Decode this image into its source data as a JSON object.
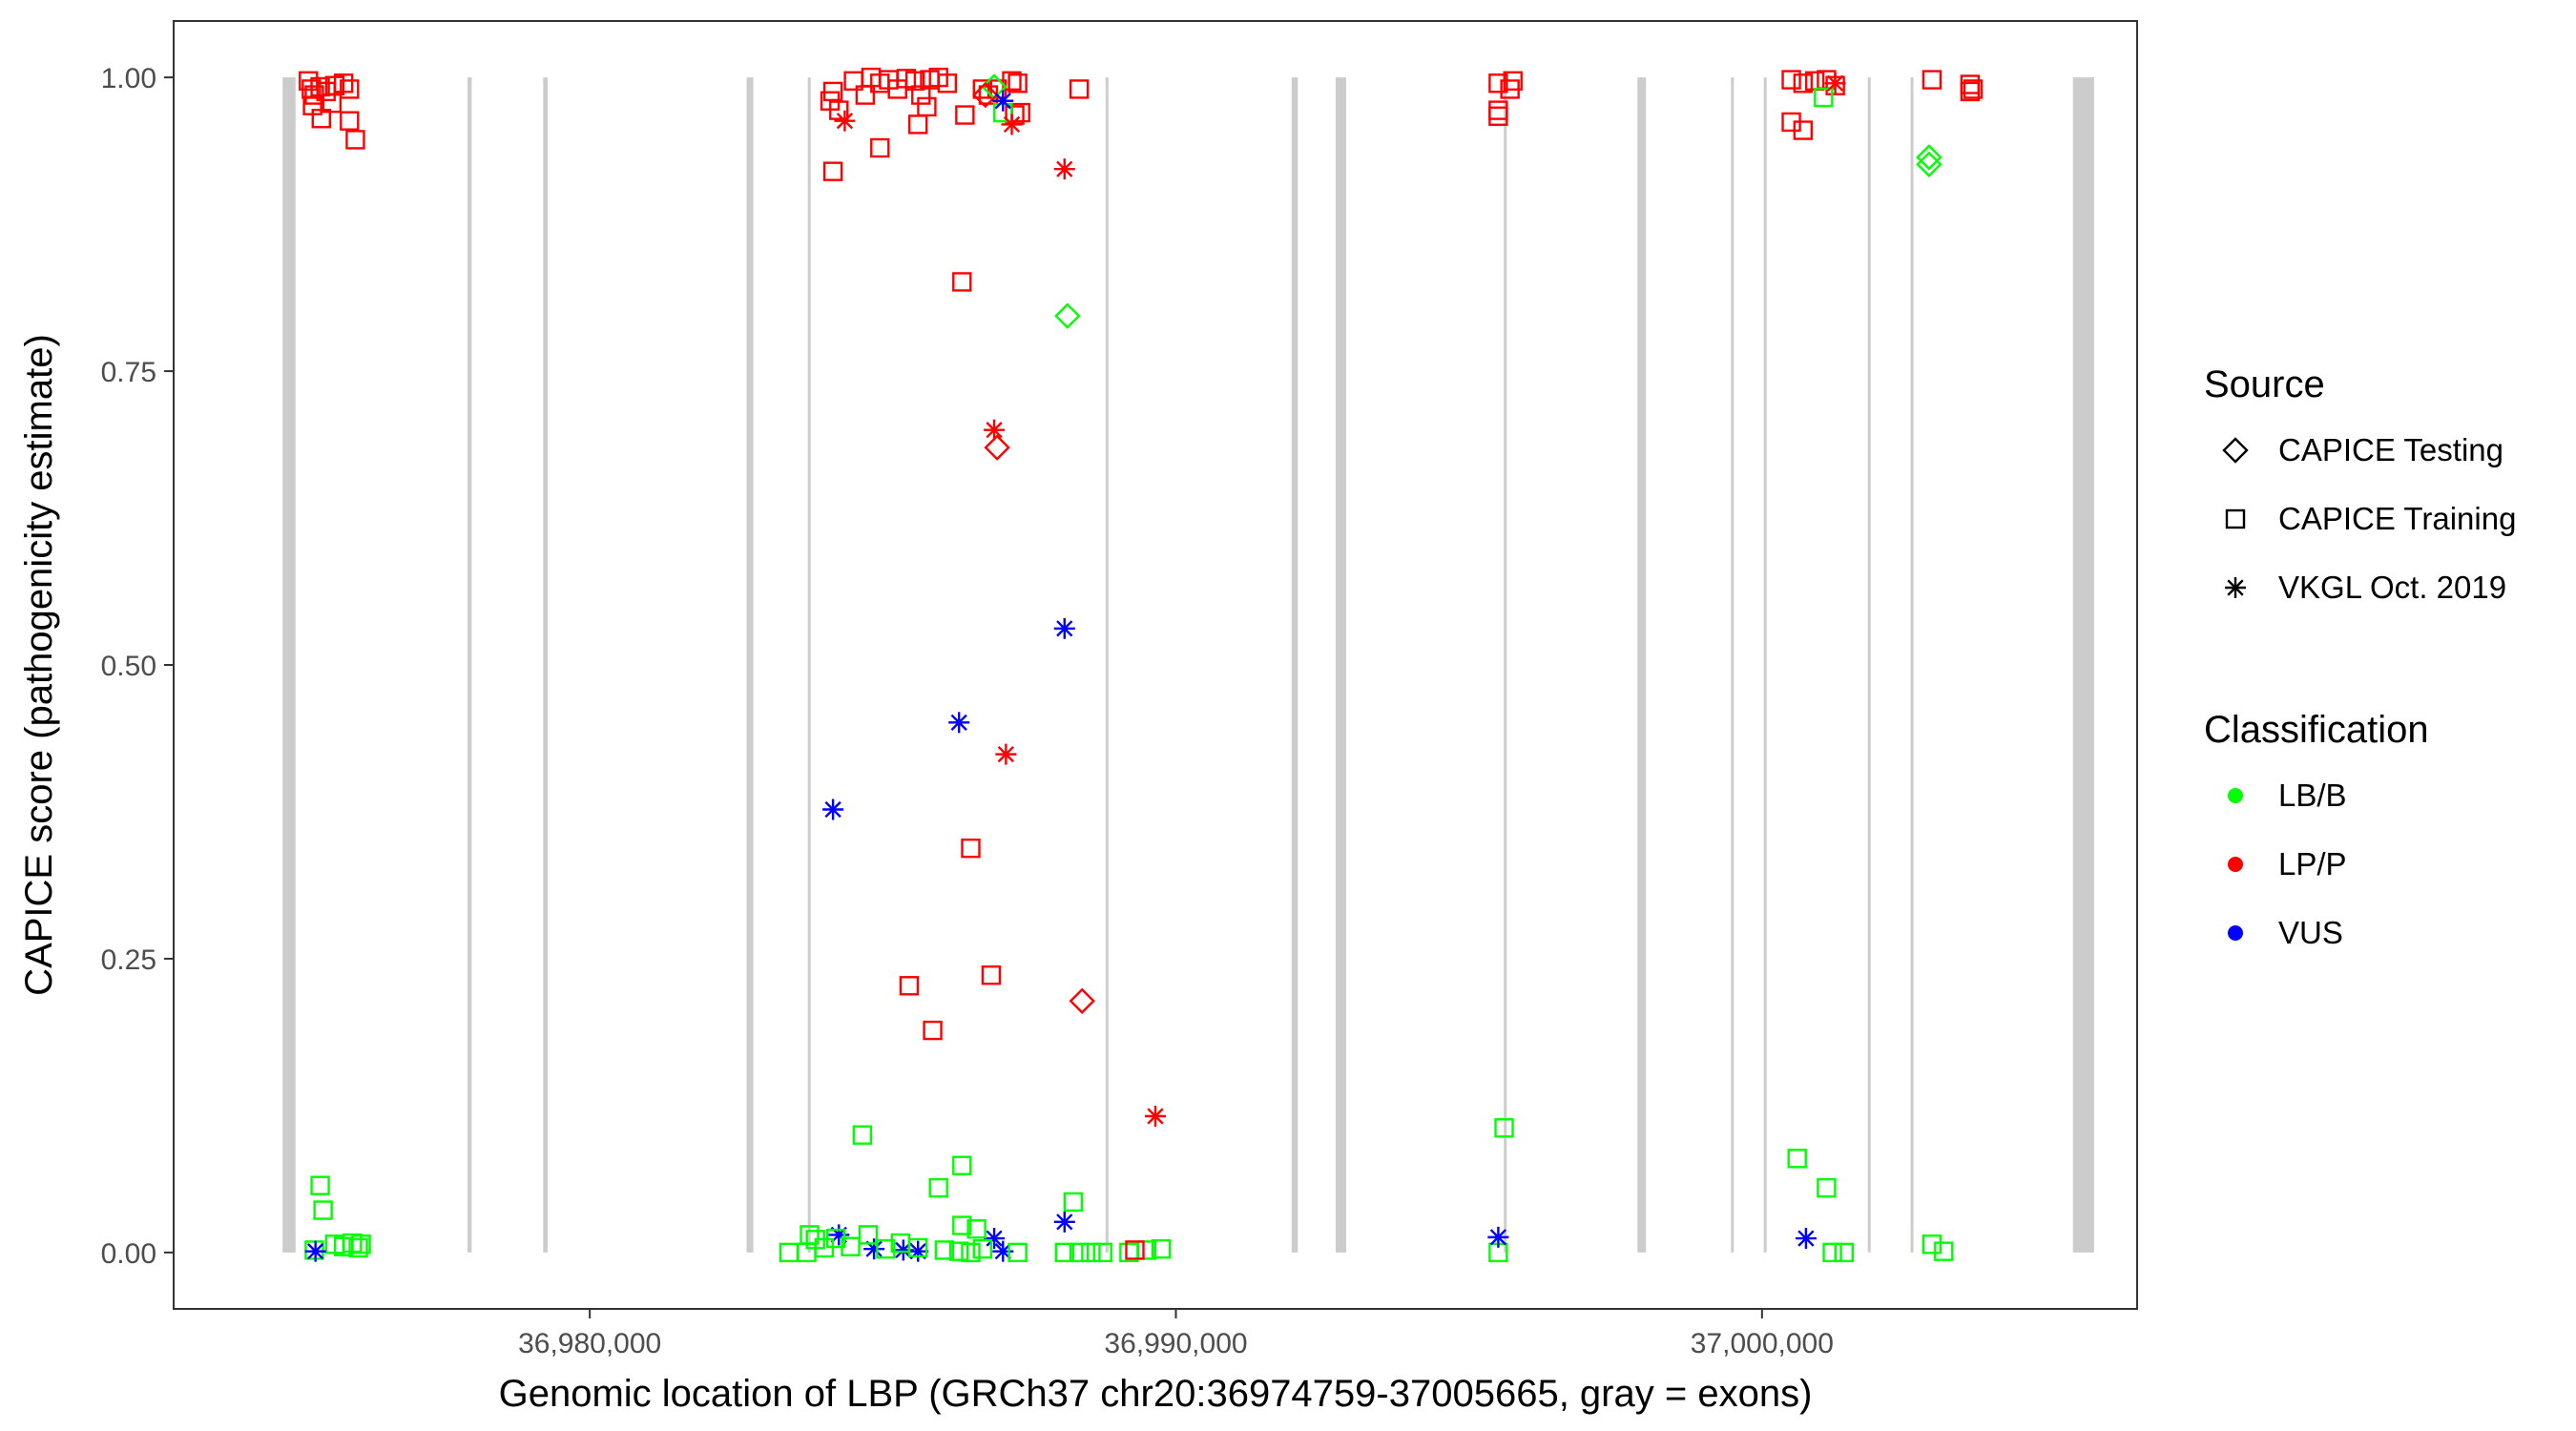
{
  "chart_data": {
    "type": "scatter",
    "xlabel": "Genomic location of LBP (GRCh37 chr20:36974759-37005665, gray = exons)",
    "ylabel": "CAPICE score (pathogenicity estimate)",
    "xlim": [
      36972900,
      37006400
    ],
    "ylim": [
      -0.048,
      1.048
    ],
    "x_ticks": [
      {
        "value": 36980000,
        "label": "36,980,000"
      },
      {
        "value": 36990000,
        "label": "36,990,000"
      },
      {
        "value": 37000000,
        "label": "37,000,000"
      }
    ],
    "y_ticks": [
      {
        "value": 0.0,
        "label": "0.00"
      },
      {
        "value": 0.25,
        "label": "0.25"
      },
      {
        "value": 0.5,
        "label": "0.50"
      },
      {
        "value": 0.75,
        "label": "0.75"
      },
      {
        "value": 1.0,
        "label": "1.00"
      }
    ],
    "grid": false,
    "exons": [
      {
        "start": 36974759,
        "end": 36974980
      },
      {
        "start": 36977915,
        "end": 36977985
      },
      {
        "start": 36979205,
        "end": 36979280
      },
      {
        "start": 36982675,
        "end": 36982790
      },
      {
        "start": 36983720,
        "end": 36983760
      },
      {
        "start": 36988800,
        "end": 36988840
      },
      {
        "start": 36991975,
        "end": 36992080
      },
      {
        "start": 36992725,
        "end": 36992905
      },
      {
        "start": 36995595,
        "end": 36995635
      },
      {
        "start": 36997875,
        "end": 36998020
      },
      {
        "start": 36999470,
        "end": 36999510
      },
      {
        "start": 37000030,
        "end": 37000070
      },
      {
        "start": 37001805,
        "end": 37001845
      },
      {
        "start": 37002535,
        "end": 37002575
      },
      {
        "start": 37005305,
        "end": 37005665
      }
    ],
    "legend": {
      "placement": "right",
      "source_title": "Source",
      "source_items": [
        {
          "label": "CAPICE Testing",
          "shape": "diamond"
        },
        {
          "label": "CAPICE Training",
          "shape": "square"
        },
        {
          "label": "VKGL Oct. 2019",
          "shape": "asterisk"
        }
      ],
      "class_title": "Classification",
      "class_items": [
        {
          "label": "LB/B",
          "color": "#00ff00"
        },
        {
          "label": "LP/P",
          "color": "#ff0000"
        },
        {
          "label": "VUS",
          "color": "#0000ff"
        }
      ]
    },
    "colors": {
      "LB/B": "#00ff00",
      "LP/P": "#ff0000",
      "VUS": "#0000ff",
      "exon": "#cccccc"
    },
    "points": [
      {
        "x": 36975200,
        "y": 0.997,
        "shape": "square",
        "cls": "LP/P"
      },
      {
        "x": 36975250,
        "y": 0.99,
        "shape": "square",
        "cls": "LP/P"
      },
      {
        "x": 36975300,
        "y": 0.985,
        "shape": "square",
        "cls": "LP/P"
      },
      {
        "x": 36975400,
        "y": 0.992,
        "shape": "square",
        "cls": "LP/P"
      },
      {
        "x": 36975500,
        "y": 0.988,
        "shape": "square",
        "cls": "LP/P"
      },
      {
        "x": 36975650,
        "y": 0.993,
        "shape": "square",
        "cls": "LP/P"
      },
      {
        "x": 36975800,
        "y": 0.995,
        "shape": "square",
        "cls": "LP/P"
      },
      {
        "x": 36975900,
        "y": 0.99,
        "shape": "square",
        "cls": "LP/P"
      },
      {
        "x": 36975270,
        "y": 0.976,
        "shape": "square",
        "cls": "LP/P"
      },
      {
        "x": 36975600,
        "y": 0.978,
        "shape": "square",
        "cls": "LP/P"
      },
      {
        "x": 36975420,
        "y": 0.965,
        "shape": "square",
        "cls": "LP/P"
      },
      {
        "x": 36975900,
        "y": 0.963,
        "shape": "square",
        "cls": "LP/P"
      },
      {
        "x": 36976000,
        "y": 0.947,
        "shape": "square",
        "cls": "LP/P"
      },
      {
        "x": 36975400,
        "y": 0.057,
        "shape": "square",
        "cls": "LB/B"
      },
      {
        "x": 36975450,
        "y": 0.036,
        "shape": "square",
        "cls": "LB/B"
      },
      {
        "x": 36975300,
        "y": 0.002,
        "shape": "square",
        "cls": "LB/B"
      },
      {
        "x": 36975650,
        "y": 0.007,
        "shape": "square",
        "cls": "LB/B"
      },
      {
        "x": 36975800,
        "y": 0.005,
        "shape": "square",
        "cls": "LB/B"
      },
      {
        "x": 36975950,
        "y": 0.008,
        "shape": "square",
        "cls": "LB/B"
      },
      {
        "x": 36976050,
        "y": 0.004,
        "shape": "square",
        "cls": "LB/B"
      },
      {
        "x": 36976100,
        "y": 0.007,
        "shape": "square",
        "cls": "LB/B"
      },
      {
        "x": 36975320,
        "y": 0.001,
        "shape": "asterisk",
        "cls": "VUS"
      },
      {
        "x": 36984100,
        "y": 0.98,
        "shape": "square",
        "cls": "LP/P"
      },
      {
        "x": 36984150,
        "y": 0.988,
        "shape": "square",
        "cls": "LP/P"
      },
      {
        "x": 36984250,
        "y": 0.972,
        "shape": "square",
        "cls": "LP/P"
      },
      {
        "x": 36984500,
        "y": 0.997,
        "shape": "square",
        "cls": "LP/P"
      },
      {
        "x": 36984700,
        "y": 0.985,
        "shape": "square",
        "cls": "LP/P"
      },
      {
        "x": 36984800,
        "y": 1.0,
        "shape": "square",
        "cls": "LP/P"
      },
      {
        "x": 36984950,
        "y": 0.995,
        "shape": "square",
        "cls": "LP/P"
      },
      {
        "x": 36985100,
        "y": 0.998,
        "shape": "square",
        "cls": "LP/P"
      },
      {
        "x": 36985250,
        "y": 0.99,
        "shape": "square",
        "cls": "LP/P"
      },
      {
        "x": 36985400,
        "y": 0.999,
        "shape": "square",
        "cls": "LP/P"
      },
      {
        "x": 36985550,
        "y": 0.997,
        "shape": "square",
        "cls": "LP/P"
      },
      {
        "x": 36985650,
        "y": 0.985,
        "shape": "square",
        "cls": "LP/P"
      },
      {
        "x": 36985750,
        "y": 0.975,
        "shape": "square",
        "cls": "LP/P"
      },
      {
        "x": 36985800,
        "y": 0.998,
        "shape": "square",
        "cls": "LP/P"
      },
      {
        "x": 36985950,
        "y": 1.0,
        "shape": "square",
        "cls": "LP/P"
      },
      {
        "x": 36986100,
        "y": 0.995,
        "shape": "square",
        "cls": "LP/P"
      },
      {
        "x": 36985600,
        "y": 0.96,
        "shape": "square",
        "cls": "LP/P"
      },
      {
        "x": 36984950,
        "y": 0.94,
        "shape": "square",
        "cls": "LP/P"
      },
      {
        "x": 36984150,
        "y": 0.92,
        "shape": "square",
        "cls": "LP/P"
      },
      {
        "x": 36986400,
        "y": 0.968,
        "shape": "square",
        "cls": "LP/P"
      },
      {
        "x": 36986700,
        "y": 0.99,
        "shape": "square",
        "cls": "LP/P"
      },
      {
        "x": 36986800,
        "y": 0.985,
        "shape": "square",
        "cls": "LP/P"
      },
      {
        "x": 36986950,
        "y": 0.99,
        "shape": "square",
        "cls": "LP/P"
      },
      {
        "x": 36987200,
        "y": 0.997,
        "shape": "square",
        "cls": "LP/P"
      },
      {
        "x": 36987300,
        "y": 0.995,
        "shape": "square",
        "cls": "LP/P"
      },
      {
        "x": 36987250,
        "y": 0.968,
        "shape": "square",
        "cls": "LP/P"
      },
      {
        "x": 36987350,
        "y": 0.97,
        "shape": "square",
        "cls": "LP/P"
      },
      {
        "x": 36986350,
        "y": 0.826,
        "shape": "square",
        "cls": "LP/P"
      },
      {
        "x": 36986500,
        "y": 0.344,
        "shape": "square",
        "cls": "LP/P"
      },
      {
        "x": 36986850,
        "y": 0.236,
        "shape": "square",
        "cls": "LP/P"
      },
      {
        "x": 36985450,
        "y": 0.227,
        "shape": "square",
        "cls": "LP/P"
      },
      {
        "x": 36985850,
        "y": 0.189,
        "shape": "square",
        "cls": "LP/P"
      },
      {
        "x": 36988350,
        "y": 0.99,
        "shape": "square",
        "cls": "LP/P"
      },
      {
        "x": 36987050,
        "y": 0.97,
        "shape": "square",
        "cls": "LB/B"
      },
      {
        "x": 36986900,
        "y": 0.992,
        "shape": "diamond",
        "cls": "LB/B"
      },
      {
        "x": 36986750,
        "y": 0.985,
        "shape": "diamond",
        "cls": "LP/P"
      },
      {
        "x": 36986950,
        "y": 0.685,
        "shape": "diamond",
        "cls": "LP/P"
      },
      {
        "x": 36988400,
        "y": 0.214,
        "shape": "diamond",
        "cls": "LP/P"
      },
      {
        "x": 36988150,
        "y": 0.797,
        "shape": "diamond",
        "cls": "LB/B"
      },
      {
        "x": 36984350,
        "y": 0.963,
        "shape": "asterisk",
        "cls": "LP/P"
      },
      {
        "x": 36986900,
        "y": 0.7,
        "shape": "asterisk",
        "cls": "LP/P"
      },
      {
        "x": 36987100,
        "y": 0.424,
        "shape": "asterisk",
        "cls": "LP/P"
      },
      {
        "x": 36987200,
        "y": 0.96,
        "shape": "asterisk",
        "cls": "LP/P"
      },
      {
        "x": 36988100,
        "y": 0.922,
        "shape": "asterisk",
        "cls": "LP/P"
      },
      {
        "x": 36989650,
        "y": 0.116,
        "shape": "asterisk",
        "cls": "LP/P"
      },
      {
        "x": 36987050,
        "y": 0.98,
        "shape": "asterisk",
        "cls": "VUS"
      },
      {
        "x": 36988100,
        "y": 0.531,
        "shape": "asterisk",
        "cls": "VUS"
      },
      {
        "x": 36986300,
        "y": 0.451,
        "shape": "asterisk",
        "cls": "VUS"
      },
      {
        "x": 36984150,
        "y": 0.377,
        "shape": "asterisk",
        "cls": "VUS"
      },
      {
        "x": 36984250,
        "y": 0.015,
        "shape": "asterisk",
        "cls": "VUS"
      },
      {
        "x": 36984850,
        "y": 0.003,
        "shape": "asterisk",
        "cls": "VUS"
      },
      {
        "x": 36985350,
        "y": 0.002,
        "shape": "asterisk",
        "cls": "VUS"
      },
      {
        "x": 36985600,
        "y": 0.001,
        "shape": "asterisk",
        "cls": "VUS"
      },
      {
        "x": 36986900,
        "y": 0.012,
        "shape": "asterisk",
        "cls": "VUS"
      },
      {
        "x": 36987050,
        "y": 0.001,
        "shape": "asterisk",
        "cls": "VUS"
      },
      {
        "x": 36988100,
        "y": 0.026,
        "shape": "asterisk",
        "cls": "VUS"
      },
      {
        "x": 36984650,
        "y": 0.1,
        "shape": "square",
        "cls": "LB/B"
      },
      {
        "x": 36985950,
        "y": 0.055,
        "shape": "square",
        "cls": "LB/B"
      },
      {
        "x": 36986350,
        "y": 0.074,
        "shape": "square",
        "cls": "LB/B"
      },
      {
        "x": 36986350,
        "y": 0.023,
        "shape": "square",
        "cls": "LB/B"
      },
      {
        "x": 36986600,
        "y": 0.02,
        "shape": "square",
        "cls": "LB/B"
      },
      {
        "x": 36988250,
        "y": 0.043,
        "shape": "square",
        "cls": "LB/B"
      },
      {
        "x": 36983400,
        "y": 0.0,
        "shape": "square",
        "cls": "LB/B"
      },
      {
        "x": 36983700,
        "y": 0.0,
        "shape": "square",
        "cls": "LB/B"
      },
      {
        "x": 36983750,
        "y": 0.015,
        "shape": "square",
        "cls": "LB/B"
      },
      {
        "x": 36983850,
        "y": 0.011,
        "shape": "square",
        "cls": "LB/B"
      },
      {
        "x": 36984000,
        "y": 0.004,
        "shape": "square",
        "cls": "LB/B"
      },
      {
        "x": 36984200,
        "y": 0.012,
        "shape": "square",
        "cls": "LB/B"
      },
      {
        "x": 36984450,
        "y": 0.005,
        "shape": "square",
        "cls": "LB/B"
      },
      {
        "x": 36984750,
        "y": 0.015,
        "shape": "square",
        "cls": "LB/B"
      },
      {
        "x": 36985050,
        "y": 0.003,
        "shape": "square",
        "cls": "LB/B"
      },
      {
        "x": 36985300,
        "y": 0.008,
        "shape": "square",
        "cls": "LB/B"
      },
      {
        "x": 36985600,
        "y": 0.004,
        "shape": "square",
        "cls": "LB/B"
      },
      {
        "x": 36986050,
        "y": 0.002,
        "shape": "square",
        "cls": "LB/B"
      },
      {
        "x": 36986300,
        "y": 0.001,
        "shape": "square",
        "cls": "LB/B"
      },
      {
        "x": 36986500,
        "y": 0.0,
        "shape": "square",
        "cls": "LB/B"
      },
      {
        "x": 36986700,
        "y": 0.003,
        "shape": "square",
        "cls": "LB/B"
      },
      {
        "x": 36987300,
        "y": 0.0,
        "shape": "square",
        "cls": "LB/B"
      },
      {
        "x": 36988100,
        "y": 0.0,
        "shape": "square",
        "cls": "LB/B"
      },
      {
        "x": 36988350,
        "y": 0.0,
        "shape": "square",
        "cls": "LB/B"
      },
      {
        "x": 36988550,
        "y": 0.0,
        "shape": "square",
        "cls": "LB/B"
      },
      {
        "x": 36988750,
        "y": 0.0,
        "shape": "square",
        "cls": "LB/B"
      },
      {
        "x": 36989200,
        "y": 0.0,
        "shape": "square",
        "cls": "LB/B"
      },
      {
        "x": 36989500,
        "y": 0.002,
        "shape": "square",
        "cls": "LB/B"
      },
      {
        "x": 36989750,
        "y": 0.003,
        "shape": "square",
        "cls": "LB/B"
      },
      {
        "x": 36989300,
        "y": 0.002,
        "shape": "square",
        "cls": "LP/P"
      },
      {
        "x": 36995500,
        "y": 0.995,
        "shape": "square",
        "cls": "LP/P"
      },
      {
        "x": 36995750,
        "y": 0.997,
        "shape": "square",
        "cls": "LP/P"
      },
      {
        "x": 36995700,
        "y": 0.99,
        "shape": "square",
        "cls": "LP/P"
      },
      {
        "x": 36995500,
        "y": 0.972,
        "shape": "square",
        "cls": "LP/P"
      },
      {
        "x": 36995500,
        "y": 0.967,
        "shape": "square",
        "cls": "LP/P"
      },
      {
        "x": 36995600,
        "y": 0.106,
        "shape": "square",
        "cls": "LB/B"
      },
      {
        "x": 36995500,
        "y": 0.0,
        "shape": "square",
        "cls": "LB/B"
      },
      {
        "x": 36995500,
        "y": 0.013,
        "shape": "asterisk",
        "cls": "VUS"
      },
      {
        "x": 37000500,
        "y": 0.998,
        "shape": "square",
        "cls": "LP/P"
      },
      {
        "x": 37000700,
        "y": 0.995,
        "shape": "square",
        "cls": "LP/P"
      },
      {
        "x": 37000900,
        "y": 0.997,
        "shape": "square",
        "cls": "LP/P"
      },
      {
        "x": 37001100,
        "y": 0.998,
        "shape": "square",
        "cls": "LP/P"
      },
      {
        "x": 37001250,
        "y": 0.993,
        "shape": "square",
        "cls": "LP/P"
      },
      {
        "x": 37000500,
        "y": 0.962,
        "shape": "square",
        "cls": "LP/P"
      },
      {
        "x": 37000700,
        "y": 0.955,
        "shape": "square",
        "cls": "LP/P"
      },
      {
        "x": 37001050,
        "y": 0.983,
        "shape": "square",
        "cls": "LB/B"
      },
      {
        "x": 37001250,
        "y": 0.995,
        "shape": "asterisk",
        "cls": "LP/P"
      },
      {
        "x": 37000600,
        "y": 0.08,
        "shape": "square",
        "cls": "LB/B"
      },
      {
        "x": 37001100,
        "y": 0.055,
        "shape": "square",
        "cls": "LB/B"
      },
      {
        "x": 37001200,
        "y": 0.0,
        "shape": "square",
        "cls": "LB/B"
      },
      {
        "x": 37001400,
        "y": 0.0,
        "shape": "square",
        "cls": "LB/B"
      },
      {
        "x": 37000750,
        "y": 0.012,
        "shape": "asterisk",
        "cls": "VUS"
      },
      {
        "x": 37002900,
        "y": 0.998,
        "shape": "square",
        "cls": "LP/P"
      },
      {
        "x": 37003550,
        "y": 0.994,
        "shape": "square",
        "cls": "LP/P"
      },
      {
        "x": 37003600,
        "y": 0.99,
        "shape": "square",
        "cls": "LP/P"
      },
      {
        "x": 37003550,
        "y": 0.988,
        "shape": "square",
        "cls": "LP/P"
      },
      {
        "x": 37002850,
        "y": 0.926,
        "shape": "diamond",
        "cls": "LB/B"
      },
      {
        "x": 37002850,
        "y": 0.932,
        "shape": "diamond",
        "cls": "LB/B"
      },
      {
        "x": 37002900,
        "y": 0.007,
        "shape": "square",
        "cls": "LB/B"
      },
      {
        "x": 37003100,
        "y": 0.001,
        "shape": "square",
        "cls": "LB/B"
      }
    ]
  }
}
